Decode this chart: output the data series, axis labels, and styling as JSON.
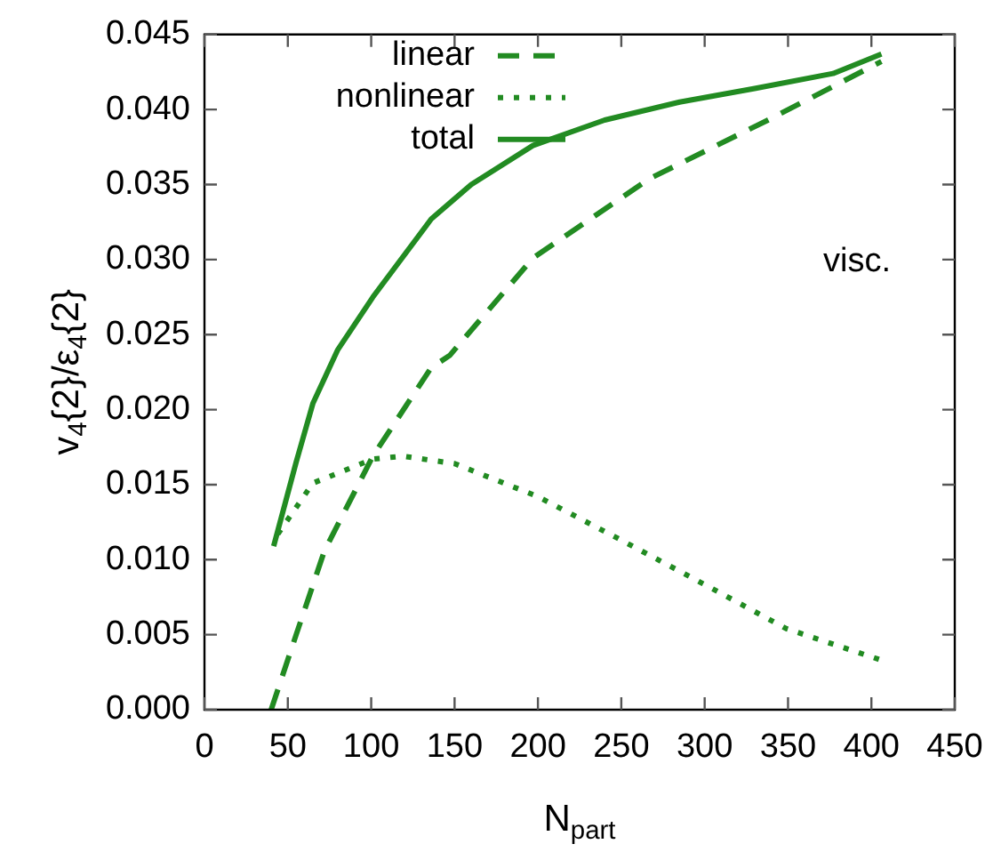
{
  "chart_data": {
    "type": "line",
    "xlabel": "N$_{part}$",
    "ylabel": "v$_{4}${2}/ε$_{4}${2}",
    "legend": "top left",
    "grid": false,
    "marker": "none",
    "xlim": [
      0,
      450
    ],
    "xticks": [
      0,
      50,
      100,
      150,
      200,
      250,
      300,
      350,
      400,
      450
    ],
    "ylim": [
      0,
      0.045
    ],
    "yticks": [
      {
        "value": 0,
        "label": "0.000"
      },
      {
        "value": 0.005,
        "label": "0.005"
      },
      {
        "value": 0.01,
        "label": "0.010"
      },
      {
        "value": 0.015,
        "label": "0.015"
      },
      {
        "value": 0.02,
        "label": "0.020"
      },
      {
        "value": 0.025,
        "label": "0.025"
      },
      {
        "value": 0.03,
        "label": "0.030"
      },
      {
        "value": 0.035,
        "label": "0.035"
      },
      {
        "value": 0.04,
        "label": "0.040"
      },
      {
        "value": 0.045,
        "label": "0.045"
      }
    ],
    "annotations": [
      "visc."
    ],
    "series": [
      {
        "name": "linear",
        "color": "#228b22",
        "line_style": "dashed",
        "x": [
          40,
          55,
          72,
          101,
          136,
          147,
          197,
          267,
          338,
          406
        ],
        "values": [
          0.0,
          0.005,
          0.0106,
          0.0169,
          0.0228,
          0.0236,
          0.0301,
          0.0354,
          0.0393,
          0.0432
        ]
      },
      {
        "name": "nonlinear",
        "color": "#228b22",
        "line_style": "dotted",
        "x": [
          44,
          65,
          101,
          119,
          150,
          200,
          250,
          299,
          349,
          406
        ],
        "values": [
          0.0117,
          0.0151,
          0.0167,
          0.0169,
          0.0164,
          0.0142,
          0.0113,
          0.0084,
          0.0054,
          0.0033
        ]
      },
      {
        "name": "total",
        "color": "#228b22",
        "line_style": "solid",
        "x": [
          41.5,
          55,
          65,
          80,
          101,
          136,
          160,
          197,
          240,
          285,
          330,
          377,
          406
        ],
        "values": [
          0.0109,
          0.0165,
          0.0204,
          0.024,
          0.0275,
          0.0327,
          0.035,
          0.0376,
          0.0393,
          0.0405,
          0.0414,
          0.0424,
          0.0437
        ]
      }
    ]
  }
}
